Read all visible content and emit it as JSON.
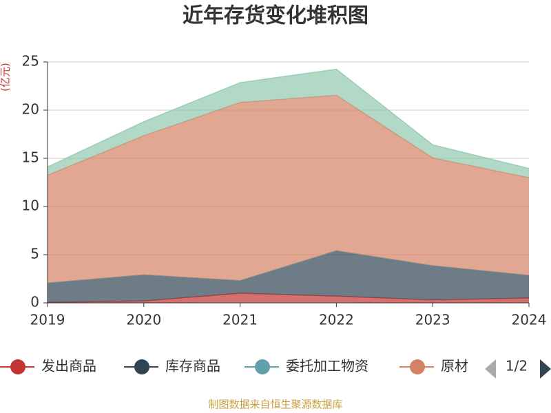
{
  "chart_data": {
    "type": "stacked-area",
    "title": "近年存货变化堆积图",
    "y_unit": "(亿元)",
    "categories": [
      "2019",
      "2020",
      "2021",
      "2022",
      "2023",
      "2024"
    ],
    "series": [
      {
        "name": "发出商品",
        "color": "#c23531",
        "values": [
          0.05,
          0.2,
          1.0,
          0.7,
          0.3,
          0.5
        ]
      },
      {
        "name": "库存商品",
        "color": "#2f4554",
        "values": [
          2.0,
          2.7,
          1.3,
          4.7,
          3.55,
          2.35
        ]
      },
      {
        "name": "委托加工物资",
        "color": "#61a0a8",
        "values": [
          0,
          0,
          0,
          0,
          0,
          0
        ]
      },
      {
        "name": "原材",
        "color": "#d48265",
        "values": [
          11.2,
          14.45,
          18.5,
          16.15,
          11.2,
          10.15
        ]
      },
      {
        "color": "#91c7ae",
        "values": [
          0.85,
          1.45,
          2.05,
          2.7,
          1.35,
          0.95
        ]
      }
    ],
    "ylim": [
      0,
      25
    ],
    "yticks": [
      0,
      5,
      10,
      15,
      20,
      25
    ],
    "grid": true,
    "legend_page": "1/2",
    "source": "制图数据来自恒生聚源数据库"
  }
}
